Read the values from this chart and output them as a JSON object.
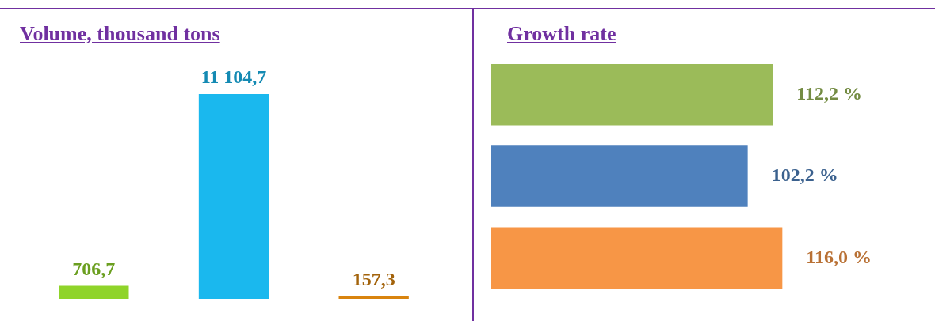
{
  "chart_data": [
    {
      "type": "bar",
      "title": "Volume, thousand tons",
      "categories": [
        null,
        null,
        null
      ],
      "values": [
        706.7,
        11104.7,
        157.3
      ],
      "colors": [
        "#8fd42a",
        "#1ab8ee",
        "#d9840f"
      ],
      "value_labels": [
        "706,7",
        "11 104,7",
        "157,3"
      ]
    },
    {
      "type": "bar",
      "orientation": "horizontal",
      "title": "Growth rate",
      "categories": [
        null,
        null,
        null
      ],
      "values": [
        112.2,
        102.2,
        116.0
      ],
      "colors": [
        "#9bbb59",
        "#4f81bd",
        "#f79646"
      ],
      "value_labels": [
        "112,2 %",
        "102,2 %",
        "116,0 %"
      ]
    }
  ]
}
